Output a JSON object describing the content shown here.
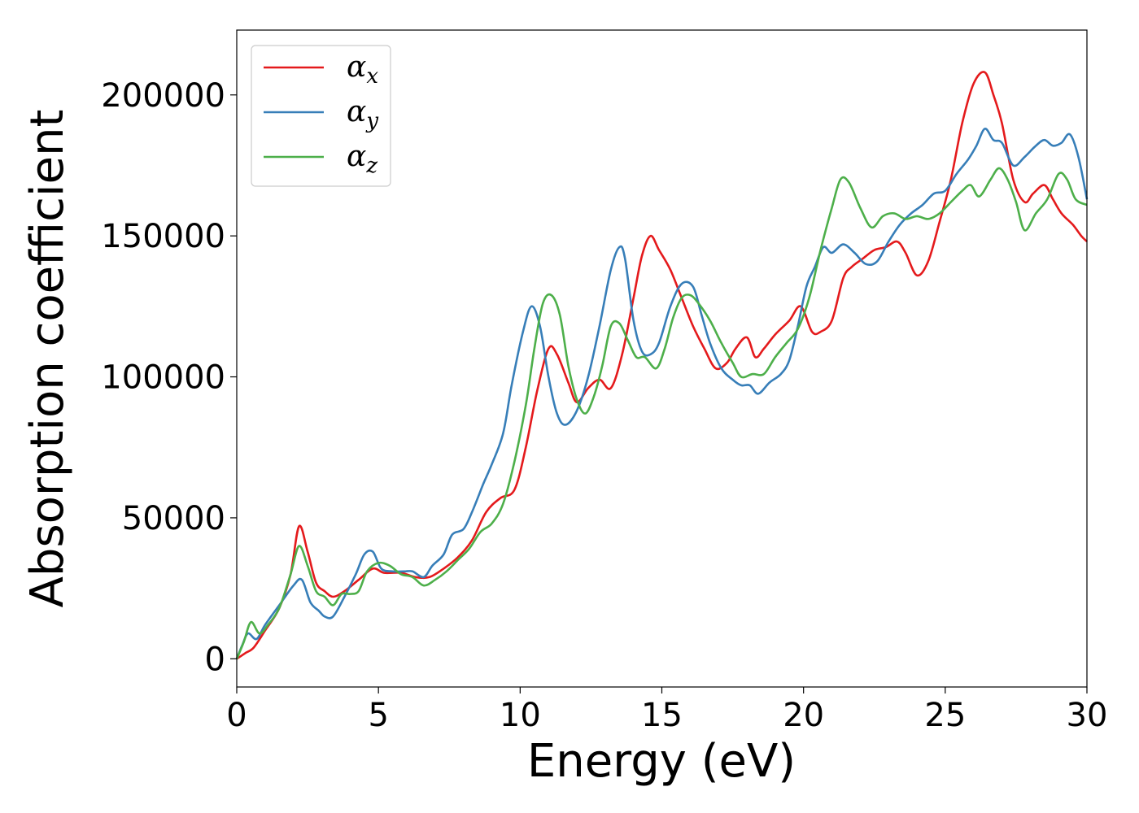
{
  "chart_data": {
    "type": "line",
    "title": "",
    "xlabel": "Energy (eV)",
    "ylabel": "Absorption coefficient",
    "xlim": [
      0,
      30
    ],
    "ylim": [
      -10000,
      223000
    ],
    "xticks": [
      0,
      5,
      10,
      15,
      20,
      25,
      30
    ],
    "yticks": [
      0,
      50000,
      100000,
      150000,
      200000
    ],
    "grid": false,
    "legend_position": "top-left",
    "series": [
      {
        "name": "αx",
        "symbol": "α",
        "subscript": "x",
        "color": "#e41a1c",
        "x": [
          0,
          0.3,
          0.6,
          1.0,
          1.5,
          1.9,
          2.2,
          2.5,
          2.8,
          3.1,
          3.4,
          3.8,
          4.3,
          4.8,
          5.2,
          5.8,
          6.3,
          6.8,
          7.3,
          7.8,
          8.3,
          8.8,
          9.3,
          9.8,
          10.2,
          10.6,
          11.0,
          11.3,
          11.7,
          12.0,
          12.4,
          12.8,
          13.2,
          13.6,
          14.0,
          14.3,
          14.6,
          14.9,
          15.3,
          15.7,
          16.1,
          16.5,
          16.9,
          17.3,
          17.6,
          18.0,
          18.3,
          18.6,
          19.0,
          19.5,
          19.9,
          20.3,
          20.6,
          21.0,
          21.4,
          21.7,
          22.1,
          22.5,
          22.9,
          23.3,
          23.6,
          24.0,
          24.4,
          24.8,
          25.2,
          25.6,
          26.0,
          26.4,
          26.7,
          27.0,
          27.4,
          27.8,
          28.1,
          28.5,
          28.8,
          29.1,
          29.5,
          29.8,
          30.0
        ],
        "values": [
          0,
          2000,
          4000,
          10000,
          18000,
          30000,
          47000,
          38000,
          27000,
          24000,
          22000,
          24000,
          28000,
          32000,
          30500,
          30500,
          29000,
          29000,
          32000,
          36000,
          42000,
          52000,
          57000,
          60000,
          75000,
          95000,
          110000,
          108000,
          98000,
          91000,
          96000,
          99000,
          96000,
          108000,
          128000,
          143000,
          150000,
          145000,
          138000,
          128000,
          118000,
          110000,
          103000,
          105000,
          110000,
          114000,
          107000,
          110000,
          115000,
          120000,
          125000,
          116000,
          116000,
          120000,
          135000,
          139000,
          142000,
          145000,
          146000,
          148000,
          144000,
          136000,
          141000,
          155000,
          170000,
          190000,
          204000,
          208000,
          200000,
          190000,
          170000,
          162000,
          165000,
          168000,
          163000,
          158000,
          154000,
          150000,
          148000
        ]
      },
      {
        "name": "αy",
        "symbol": "α",
        "subscript": "y",
        "color": "#377eb8",
        "x": [
          0,
          0.2,
          0.4,
          0.7,
          1.0,
          1.5,
          2.0,
          2.3,
          2.6,
          2.9,
          3.1,
          3.4,
          3.8,
          4.2,
          4.5,
          4.8,
          5.1,
          5.5,
          5.9,
          6.2,
          6.6,
          6.9,
          7.3,
          7.6,
          8.0,
          8.3,
          8.7,
          9.0,
          9.4,
          9.7,
          10.1,
          10.4,
          10.7,
          11.0,
          11.3,
          11.6,
          12.0,
          12.4,
          12.8,
          13.2,
          13.5,
          13.7,
          14.0,
          14.3,
          14.6,
          14.9,
          15.3,
          15.7,
          16.1,
          16.4,
          16.7,
          17.1,
          17.5,
          17.8,
          18.1,
          18.4,
          18.8,
          19.2,
          19.5,
          19.8,
          20.1,
          20.4,
          20.7,
          21.0,
          21.4,
          21.8,
          22.2,
          22.6,
          23.0,
          23.4,
          23.8,
          24.2,
          24.6,
          25.0,
          25.4,
          25.8,
          26.1,
          26.4,
          26.7,
          27.0,
          27.4,
          27.8,
          28.2,
          28.5,
          28.8,
          29.1,
          29.4,
          29.7,
          30.0
        ],
        "values": [
          0,
          5000,
          9000,
          7000,
          12000,
          19000,
          26000,
          28000,
          20000,
          17000,
          15000,
          15000,
          22000,
          30000,
          37000,
          38000,
          32000,
          31000,
          31000,
          31000,
          29000,
          33000,
          37000,
          44000,
          46000,
          52000,
          62000,
          69000,
          80000,
          97000,
          116000,
          125000,
          118000,
          100000,
          87000,
          83000,
          88000,
          100000,
          118000,
          138000,
          146000,
          142000,
          120000,
          109000,
          108000,
          112000,
          125000,
          133000,
          132000,
          122000,
          112000,
          103000,
          99000,
          97000,
          97000,
          94000,
          98000,
          101000,
          106000,
          118000,
          132000,
          139000,
          146000,
          144000,
          147000,
          144000,
          140000,
          141000,
          148000,
          154000,
          158000,
          161000,
          165000,
          166000,
          172000,
          177000,
          182000,
          188000,
          184000,
          183000,
          175000,
          178000,
          182000,
          184000,
          182000,
          183000,
          186000,
          178000,
          163000
        ]
      },
      {
        "name": "αz",
        "symbol": "α",
        "subscript": "z",
        "color": "#4daf4a",
        "x": [
          0,
          0.25,
          0.5,
          0.8,
          1.1,
          1.5,
          1.9,
          2.2,
          2.5,
          2.8,
          3.1,
          3.4,
          3.7,
          4.0,
          4.3,
          4.6,
          5.0,
          5.4,
          5.8,
          6.2,
          6.6,
          7.0,
          7.4,
          7.8,
          8.2,
          8.6,
          9.0,
          9.4,
          9.8,
          10.2,
          10.5,
          10.8,
          11.1,
          11.4,
          11.7,
          12.0,
          12.3,
          12.6,
          12.9,
          13.2,
          13.5,
          13.8,
          14.1,
          14.4,
          14.8,
          15.1,
          15.4,
          15.7,
          16.0,
          16.3,
          16.7,
          17.1,
          17.5,
          17.8,
          18.2,
          18.6,
          19.0,
          19.4,
          19.8,
          20.2,
          20.6,
          21.0,
          21.3,
          21.6,
          22.0,
          22.4,
          22.8,
          23.2,
          23.6,
          24.0,
          24.4,
          24.8,
          25.2,
          25.6,
          25.9,
          26.2,
          26.6,
          26.9,
          27.2,
          27.5,
          27.8,
          28.2,
          28.6,
          29.0,
          29.3,
          29.6,
          30.0
        ],
        "values": [
          0,
          6000,
          13000,
          9000,
          12000,
          18000,
          30000,
          40000,
          33000,
          24000,
          22000,
          19000,
          23000,
          23000,
          24000,
          31000,
          34000,
          33000,
          30000,
          29000,
          26000,
          28000,
          31000,
          35000,
          39000,
          45000,
          48000,
          55000,
          70000,
          90000,
          110000,
          126000,
          129000,
          122000,
          104000,
          92000,
          87000,
          93000,
          104000,
          118000,
          119000,
          113000,
          107000,
          107000,
          103000,
          110000,
          121000,
          128000,
          129000,
          126000,
          120000,
          112000,
          105000,
          100000,
          101000,
          101000,
          107000,
          112000,
          117000,
          128000,
          145000,
          160000,
          170000,
          169000,
          160000,
          153000,
          157000,
          158000,
          156000,
          157000,
          156000,
          158000,
          162000,
          166000,
          168000,
          164000,
          170000,
          174000,
          170000,
          162000,
          152000,
          158000,
          163000,
          172000,
          170000,
          163000,
          161000
        ]
      }
    ]
  }
}
